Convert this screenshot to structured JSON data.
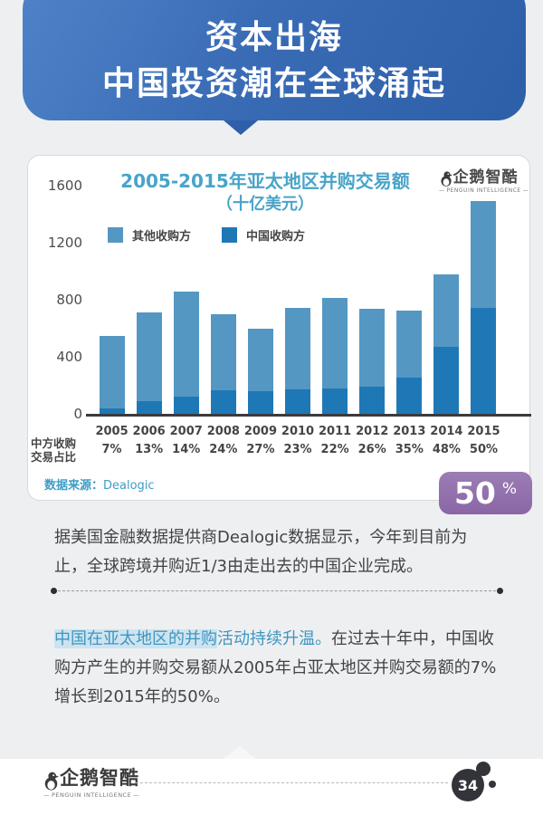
{
  "header": {
    "line1": "资本出海",
    "line2": "中国投资潮在全球涌起"
  },
  "chart": {
    "title_line1": "2005-2015年亚太地区并购交易额",
    "title_line2": "（十亿美元）",
    "legend": [
      {
        "label": "其他收购方",
        "color": "#5597c3"
      },
      {
        "label": "中国收购方",
        "color": "#1f78b6"
      }
    ],
    "y_ticks": [
      "1600",
      "1200",
      "800",
      "400",
      "0"
    ],
    "row_label_line1": "中方收购",
    "row_label_line2": "交易占比",
    "source_label": "数据来源：",
    "source_value": "Dealogic",
    "logo_name": "企鹅智酷",
    "logo_sub": "PENGUIN INTELLIGENCE"
  },
  "chart_data": {
    "type": "bar",
    "stacked": true,
    "title": "2005-2015年亚太地区并购交易额（十亿美元）",
    "unit": "十亿美元",
    "categories": [
      "2005",
      "2006",
      "2007",
      "2008",
      "2009",
      "2010",
      "2011",
      "2012",
      "2013",
      "2014",
      "2015"
    ],
    "series": [
      {
        "name": "中国收购方",
        "color": "#1f78b6",
        "values": [
          38,
          92,
          120,
          168,
          162,
          171,
          179,
          191,
          254,
          468,
          745
        ]
      },
      {
        "name": "其他收购方",
        "color": "#5597c3",
        "values": [
          507,
          618,
          735,
          532,
          438,
          574,
          636,
          544,
          471,
          507,
          745
        ]
      }
    ],
    "totals": [
      545,
      710,
      855,
      700,
      600,
      745,
      815,
      735,
      725,
      975,
      1490
    ],
    "china_share_pct": [
      "7%",
      "13%",
      "14%",
      "24%",
      "27%",
      "23%",
      "22%",
      "26%",
      "35%",
      "48%",
      "50%"
    ],
    "china_share_row_label": "中方收购交易占比",
    "xlabel": "",
    "ylabel": "",
    "ylim": [
      0,
      1600
    ],
    "grid": false,
    "legend_position": "top-left",
    "source": "数据来源：Dealogic"
  },
  "badge": {
    "value": "50",
    "unit": "%"
  },
  "paragraph1": "据美国金融数据提供商Dealogic数据显示，今年到目前为止，全球跨境并购近1/3由走出去的中国企业完成。",
  "paragraph2": {
    "highlight": "中国在亚太地区的并购",
    "teal": "活动持续升温。",
    "rest": "在过去十年中，中国收购方产生的并购交易额从2005年占亚太地区并购交易额的7%增长到2015年的50%。"
  },
  "footer": {
    "logo_name": "企鹅智酷",
    "logo_sub": "PENGUIN INTELLIGENCE",
    "page_number": "34"
  }
}
